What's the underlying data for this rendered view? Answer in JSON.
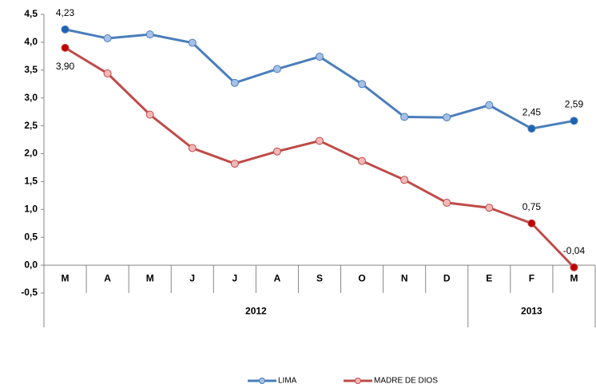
{
  "chart_data": {
    "type": "line",
    "categories": [
      "M",
      "A",
      "M",
      "J",
      "J",
      "A",
      "S",
      "O",
      "N",
      "D",
      "E",
      "F",
      "M"
    ],
    "groups": [
      {
        "label": "2012",
        "count": 10
      },
      {
        "label": "2013",
        "count": 3
      }
    ],
    "series": [
      {
        "name": "LIMA",
        "color": "#4a7ebb",
        "marker_color": "#a7c0e6",
        "highlight_color": "#1f62b0",
        "values": [
          4.23,
          4.07,
          4.14,
          3.99,
          3.27,
          3.52,
          3.74,
          3.25,
          2.66,
          2.65,
          2.87,
          2.45,
          2.59
        ],
        "value_labels": [
          "4,23",
          null,
          null,
          null,
          null,
          null,
          null,
          null,
          null,
          null,
          null,
          "2,45",
          "2,59"
        ]
      },
      {
        "name": "MADRE DE DIOS",
        "color": "#be4b48",
        "marker_color": "#f2b8b7",
        "highlight_color": "#c00000",
        "values": [
          3.9,
          3.44,
          2.7,
          2.1,
          1.82,
          2.04,
          2.23,
          1.87,
          1.53,
          1.12,
          1.03,
          0.75,
          -0.04
        ],
        "value_labels": [
          "3,90",
          null,
          null,
          null,
          null,
          null,
          null,
          null,
          null,
          null,
          null,
          "0,75",
          "-0,04"
        ]
      }
    ],
    "ylim": [
      -0.5,
      4.5
    ],
    "yticks": [
      {
        "value": -0.5,
        "label": "-0,5"
      },
      {
        "value": 0,
        "label": "0,0"
      },
      {
        "value": 0.5,
        "label": "0,5"
      },
      {
        "value": 1,
        "label": "1,0"
      },
      {
        "value": 1.5,
        "label": "1,5"
      },
      {
        "value": 2,
        "label": "2,0"
      },
      {
        "value": 2.5,
        "label": "2,5"
      },
      {
        "value": 3,
        "label": "3,0"
      },
      {
        "value": 3.5,
        "label": "3,5"
      },
      {
        "value": 4,
        "label": "4,0"
      },
      {
        "value": 4.5,
        "label": "4,5"
      }
    ],
    "grid": false,
    "legend": "bottom"
  }
}
